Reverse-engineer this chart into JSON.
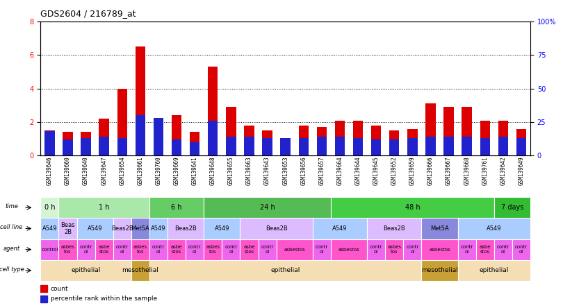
{
  "title": "GDS2604 / 216789_at",
  "samples": [
    "GSM139646",
    "GSM139660",
    "GSM139640",
    "GSM139647",
    "GSM139654",
    "GSM139661",
    "GSM139760",
    "GSM139669",
    "GSM139641",
    "GSM139648",
    "GSM139655",
    "GSM139663",
    "GSM139643",
    "GSM139653",
    "GSM139656",
    "GSM139657",
    "GSM139664",
    "GSM139644",
    "GSM139645",
    "GSM139652",
    "GSM139659",
    "GSM139666",
    "GSM139667",
    "GSM139668",
    "GSM139761",
    "GSM139642",
    "GSM139649"
  ],
  "count_values": [
    1.5,
    1.4,
    1.4,
    2.2,
    4.0,
    6.5,
    1.8,
    2.4,
    1.4,
    5.3,
    2.9,
    1.8,
    1.5,
    0.9,
    1.8,
    1.7,
    2.1,
    2.1,
    1.8,
    1.5,
    1.6,
    3.1,
    2.9,
    2.9,
    2.1,
    2.1,
    1.6
  ],
  "percentile_values": [
    18,
    12,
    13,
    14,
    13,
    30,
    28,
    12,
    10,
    26,
    14,
    14,
    13,
    13,
    13,
    14,
    14,
    13,
    12,
    12,
    13,
    14,
    14,
    14,
    13,
    14,
    13
  ],
  "ylim_left": [
    0,
    8
  ],
  "ylim_right": [
    0,
    100
  ],
  "yticks_left": [
    0,
    2,
    4,
    6,
    8
  ],
  "yticks_right": [
    0,
    25,
    50,
    75,
    100
  ],
  "ytick_labels_right": [
    "0",
    "25",
    "50",
    "75",
    "100%"
  ],
  "bar_color": "#dd0000",
  "percentile_color": "#2222cc",
  "time_rows": [
    {
      "label": "0 h",
      "start": 0,
      "end": 1,
      "color": "#d4f5d4"
    },
    {
      "label": "1 h",
      "start": 1,
      "end": 6,
      "color": "#aae8aa"
    },
    {
      "label": "6 h",
      "start": 6,
      "end": 9,
      "color": "#66cc66"
    },
    {
      "label": "24 h",
      "start": 9,
      "end": 16,
      "color": "#55bb55"
    },
    {
      "label": "48 h",
      "start": 16,
      "end": 25,
      "color": "#44cc44"
    },
    {
      "label": "7 days",
      "start": 25,
      "end": 27,
      "color": "#33bb33"
    }
  ],
  "cellline_rows": [
    {
      "label": "A549",
      "start": 0,
      "end": 1,
      "color": "#aaccff"
    },
    {
      "label": "Beas\n2B",
      "start": 1,
      "end": 2,
      "color": "#ddbbff"
    },
    {
      "label": "A549",
      "start": 2,
      "end": 4,
      "color": "#aaccff"
    },
    {
      "label": "Beas2B",
      "start": 4,
      "end": 5,
      "color": "#ddbbff"
    },
    {
      "label": "Met5A",
      "start": 5,
      "end": 6,
      "color": "#8888dd"
    },
    {
      "label": "A549",
      "start": 6,
      "end": 7,
      "color": "#aaccff"
    },
    {
      "label": "Beas2B",
      "start": 7,
      "end": 9,
      "color": "#ddbbff"
    },
    {
      "label": "A549",
      "start": 9,
      "end": 11,
      "color": "#aaccff"
    },
    {
      "label": "Beas2B",
      "start": 11,
      "end": 15,
      "color": "#ddbbff"
    },
    {
      "label": "A549",
      "start": 15,
      "end": 18,
      "color": "#aaccff"
    },
    {
      "label": "Beas2B",
      "start": 18,
      "end": 21,
      "color": "#ddbbff"
    },
    {
      "label": "Met5A",
      "start": 21,
      "end": 23,
      "color": "#8888dd"
    },
    {
      "label": "A549",
      "start": 23,
      "end": 27,
      "color": "#aaccff"
    }
  ],
  "agent_rows": [
    {
      "label": "control",
      "start": 0,
      "end": 1,
      "color": "#ee66ee"
    },
    {
      "label": "asbes\ntos",
      "start": 1,
      "end": 2,
      "color": "#ff55cc"
    },
    {
      "label": "contr\nol",
      "start": 2,
      "end": 3,
      "color": "#ee66ee"
    },
    {
      "label": "asbe\nstos",
      "start": 3,
      "end": 4,
      "color": "#ff55cc"
    },
    {
      "label": "contr\nol",
      "start": 4,
      "end": 5,
      "color": "#ee66ee"
    },
    {
      "label": "asbes\ntos",
      "start": 5,
      "end": 6,
      "color": "#ff55cc"
    },
    {
      "label": "contr\nol",
      "start": 6,
      "end": 7,
      "color": "#ee66ee"
    },
    {
      "label": "asbe\nstos",
      "start": 7,
      "end": 8,
      "color": "#ff55cc"
    },
    {
      "label": "contr\nol",
      "start": 8,
      "end": 9,
      "color": "#ee66ee"
    },
    {
      "label": "asbes\ntos",
      "start": 9,
      "end": 10,
      "color": "#ff55cc"
    },
    {
      "label": "contr\nol",
      "start": 10,
      "end": 11,
      "color": "#ee66ee"
    },
    {
      "label": "asbe\nstos",
      "start": 11,
      "end": 12,
      "color": "#ff55cc"
    },
    {
      "label": "contr\nol",
      "start": 12,
      "end": 13,
      "color": "#ee66ee"
    },
    {
      "label": "asbestos",
      "start": 13,
      "end": 15,
      "color": "#ff55cc"
    },
    {
      "label": "contr\nol",
      "start": 15,
      "end": 16,
      "color": "#ee66ee"
    },
    {
      "label": "asbestos",
      "start": 16,
      "end": 18,
      "color": "#ff55cc"
    },
    {
      "label": "contr\nol",
      "start": 18,
      "end": 19,
      "color": "#ee66ee"
    },
    {
      "label": "asbes\ntos",
      "start": 19,
      "end": 20,
      "color": "#ff55cc"
    },
    {
      "label": "contr\nol",
      "start": 20,
      "end": 21,
      "color": "#ee66ee"
    },
    {
      "label": "asbestos",
      "start": 21,
      "end": 23,
      "color": "#ff55cc"
    },
    {
      "label": "contr\nol",
      "start": 23,
      "end": 24,
      "color": "#ee66ee"
    },
    {
      "label": "asbe\nstos",
      "start": 24,
      "end": 25,
      "color": "#ff55cc"
    },
    {
      "label": "contr\nol",
      "start": 25,
      "end": 26,
      "color": "#ee66ee"
    },
    {
      "label": "contr\nol",
      "start": 26,
      "end": 27,
      "color": "#ee66ee"
    }
  ],
  "celltype_rows": [
    {
      "label": "epithelial",
      "start": 0,
      "end": 5,
      "color": "#f5deb3"
    },
    {
      "label": "mesothelial",
      "start": 5,
      "end": 6,
      "color": "#c8a035"
    },
    {
      "label": "epithelial",
      "start": 6,
      "end": 21,
      "color": "#f5deb3"
    },
    {
      "label": "mesothelial",
      "start": 21,
      "end": 23,
      "color": "#c8a035"
    },
    {
      "label": "epithelial",
      "start": 23,
      "end": 27,
      "color": "#f5deb3"
    }
  ],
  "row_labels": [
    "time",
    "cell line",
    "agent",
    "cell type"
  ],
  "legend_items": [
    {
      "label": "count",
      "color": "#dd0000"
    },
    {
      "label": "percentile rank within the sample",
      "color": "#2222cc"
    }
  ]
}
